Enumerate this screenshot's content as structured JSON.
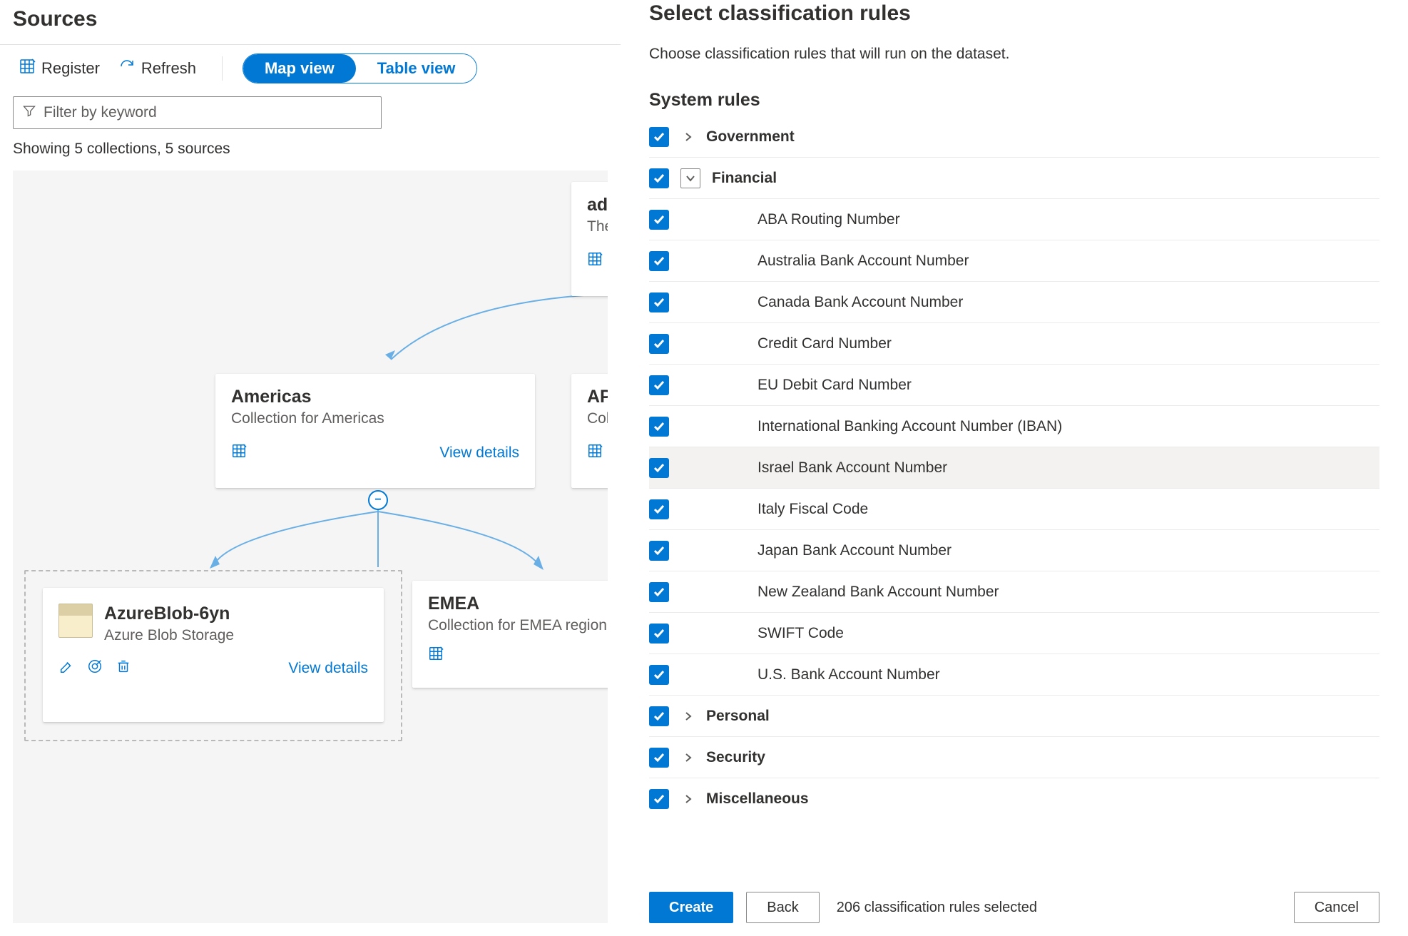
{
  "colors": {
    "accent": "#0078d4",
    "text": "#323130",
    "muted": "#605e5c",
    "border": "#e1dfdd",
    "canvas_bg": "#f5f5f5",
    "row_border": "#edebe9",
    "highlight": "#f3f2f1",
    "connector": "#69afe5"
  },
  "left": {
    "title": "Sources",
    "toolbar": {
      "register": "Register",
      "refresh": "Refresh",
      "map_view": "Map view",
      "table_view": "Table view"
    },
    "filter_placeholder": "Filter by keyword",
    "showing": "Showing 5 collections, 5 sources",
    "cards": {
      "adp": {
        "title": "adpu",
        "subtitle": "The n"
      },
      "americas": {
        "title": "Americas",
        "subtitle": "Collection for Americas",
        "view": "View details"
      },
      "apac": {
        "title": "APA",
        "subtitle": "Colle"
      },
      "emea": {
        "title": "EMEA",
        "subtitle": "Collection for EMEA region"
      },
      "blob": {
        "title": "AzureBlob-6yn",
        "subtitle": "Azure Blob Storage",
        "view": "View details"
      }
    }
  },
  "panel": {
    "title": "Select classification rules",
    "description": "Choose classification rules that will run on the dataset.",
    "section": "System rules",
    "categories": {
      "government": "Government",
      "financial": "Financial",
      "personal": "Personal",
      "security": "Security",
      "misc": "Miscellaneous"
    },
    "financial_items": [
      "ABA Routing Number",
      "Australia Bank Account Number",
      "Canada Bank Account Number",
      "Credit Card Number",
      "EU Debit Card Number",
      "International Banking Account Number (IBAN)",
      "Israel Bank Account Number",
      "Italy Fiscal Code",
      "Japan Bank Account Number",
      "New Zealand Bank Account Number",
      "SWIFT Code",
      "U.S. Bank Account Number"
    ],
    "highlight_index": 6,
    "footer": {
      "create": "Create",
      "back": "Back",
      "cancel": "Cancel",
      "count": "206 classification rules selected"
    }
  }
}
